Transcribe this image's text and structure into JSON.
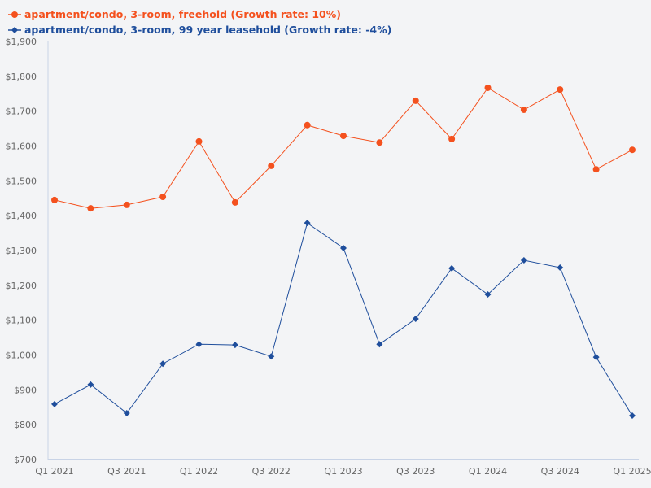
{
  "legend": [
    {
      "label": "apartment/condo, 3-room, freehold (Growth rate: 10%)",
      "color": "#f4511e",
      "marker": "circle"
    },
    {
      "label": "apartment/condo, 3-room, 99 year leasehold (Growth rate: -4%)",
      "color": "#1f4e9c",
      "marker": "diamond"
    }
  ],
  "chart_data": {
    "type": "line",
    "title": "",
    "xlabel": "",
    "ylabel": "",
    "ylim": [
      700,
      1900
    ],
    "y_ticks": [
      "$700",
      "$800",
      "$900",
      "$1,000",
      "$1,100",
      "$1,200",
      "$1,300",
      "$1,400",
      "$1,500",
      "$1,600",
      "$1,700",
      "$1,800",
      "$1,900"
    ],
    "x": [
      "Q1 2021",
      "Q2 2021",
      "Q3 2021",
      "Q4 2021",
      "Q1 2022",
      "Q2 2022",
      "Q3 2022",
      "Q4 2022",
      "Q1 2023",
      "Q2 2023",
      "Q3 2023",
      "Q4 2023",
      "Q1 2024",
      "Q2 2024",
      "Q3 2024",
      "Q4 2024",
      "Q1 2025"
    ],
    "x_tick_labels": [
      "Q1 2021",
      "",
      "Q3 2021",
      "",
      "Q1 2022",
      "",
      "Q3 2022",
      "",
      "Q1 2023",
      "",
      "Q3 2023",
      "",
      "Q1 2024",
      "",
      "Q3 2024",
      "",
      "Q1 2025"
    ],
    "grid": false,
    "legend_position": "top-left",
    "series": [
      {
        "name": "apartment/condo, 3-room, freehold (Growth rate: 10%)",
        "color": "#f4511e",
        "marker": "circle",
        "values": [
          1445,
          1421,
          1431,
          1454,
          1613,
          1438,
          1543,
          1660,
          1629,
          1610,
          1730,
          1620,
          1767,
          1704,
          1762,
          1533,
          1589
        ]
      },
      {
        "name": "apartment/condo, 3-room, 99 year leasehold (Growth rate: -4%)",
        "color": "#1f4e9c",
        "marker": "diamond",
        "values": [
          859,
          915,
          833,
          975,
          1031,
          1029,
          996,
          1379,
          1307,
          1031,
          1104,
          1249,
          1174,
          1272,
          1251,
          994,
          826
        ]
      }
    ]
  }
}
